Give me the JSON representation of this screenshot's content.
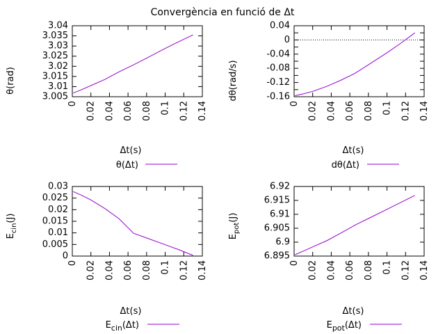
{
  "title": "Convergència en funció de Δt",
  "series_color": "#9400d3",
  "chart_data": [
    {
      "type": "line",
      "title": "",
      "xlabel": "Δt(s)",
      "ylabel": "θ(rad)",
      "legend": "θ(Δt)",
      "xlim": [
        0,
        0.14
      ],
      "ylim": [
        3.005,
        3.04
      ],
      "xticks": [
        0,
        0.02,
        0.04,
        0.06,
        0.08,
        0.1,
        0.12,
        0.14
      ],
      "xtick_labels": [
        "0",
        "0.02",
        "0.04",
        "0.06",
        "0.08",
        "0.1",
        "0.12",
        "0.14"
      ],
      "yticks": [
        3.005,
        3.01,
        3.015,
        3.02,
        3.025,
        3.03,
        3.035,
        3.04
      ],
      "ytick_labels": [
        "3.005",
        "3.01",
        "3.015",
        "3.02",
        "3.025",
        "3.03",
        "3.035",
        "3.04"
      ],
      "zero_line": false,
      "series": [
        {
          "name": "θ(Δt)",
          "x": [
            0.001,
            0.01,
            0.02,
            0.035,
            0.05,
            0.065,
            0.08,
            0.1,
            0.115,
            0.13
          ],
          "y": [
            3.0068,
            3.0085,
            3.0105,
            3.0135,
            3.0172,
            3.0205,
            3.024,
            3.0288,
            3.0322,
            3.0355
          ]
        }
      ]
    },
    {
      "type": "line",
      "title": "",
      "xlabel": "Δt(s)",
      "ylabel": "dθ(rad/s)",
      "legend": "dθ(Δt)",
      "xlim": [
        0,
        0.14
      ],
      "ylim": [
        -0.16,
        0.04
      ],
      "xticks": [
        0,
        0.02,
        0.04,
        0.06,
        0.08,
        0.1,
        0.12,
        0.14
      ],
      "xtick_labels": [
        "0",
        "0.02",
        "0.04",
        "0.06",
        "0.08",
        "0.1",
        "0.12",
        "0.14"
      ],
      "yticks": [
        -0.16,
        -0.14,
        -0.12,
        -0.1,
        -0.08,
        -0.06,
        -0.04,
        -0.02,
        0,
        0.02,
        0.04
      ],
      "ytick_labels": [
        "-0.16",
        "",
        "-0.12",
        "",
        "-0.08",
        "",
        "-0.04",
        "",
        "0",
        "",
        "0.04"
      ],
      "zero_line": true,
      "series": [
        {
          "name": "dθ(Δt)",
          "x": [
            0.001,
            0.01,
            0.02,
            0.035,
            0.05,
            0.065,
            0.08,
            0.1,
            0.115,
            0.13
          ],
          "y": [
            -0.157,
            -0.152,
            -0.145,
            -0.131,
            -0.114,
            -0.095,
            -0.07,
            -0.036,
            -0.009,
            0.02
          ]
        }
      ]
    },
    {
      "type": "line",
      "title": "",
      "xlabel": "Δt(s)",
      "ylabel": "E",
      "ylabel_sub": "cin",
      "ylabel_suffix": "(J)",
      "legend": "E",
      "legend_sub": "cin",
      "legend_suffix": "(Δt)",
      "xlim": [
        0,
        0.14
      ],
      "ylim": [
        0,
        0.03
      ],
      "xticks": [
        0,
        0.02,
        0.04,
        0.06,
        0.08,
        0.1,
        0.12,
        0.14
      ],
      "xtick_labels": [
        "0",
        "0.02",
        "0.04",
        "0.06",
        "0.08",
        "0.1",
        "0.12",
        "0.14"
      ],
      "yticks": [
        0,
        0.005,
        0.01,
        0.015,
        0.02,
        0.025,
        0.03
      ],
      "ytick_labels": [
        "0",
        "0.005",
        "0.01",
        "0.015",
        "0.02",
        "0.025",
        "0.03"
      ],
      "zero_line": false,
      "series": [
        {
          "name": "Ecin(Δt)",
          "x": [
            0.001,
            0.01,
            0.02,
            0.035,
            0.05,
            0.066,
            0.08,
            0.1,
            0.115,
            0.13
          ],
          "y": [
            0.0278,
            0.0262,
            0.0242,
            0.0205,
            0.0162,
            0.0098,
            0.0078,
            0.0049,
            0.0027,
            0.0003
          ]
        }
      ]
    },
    {
      "type": "line",
      "title": "",
      "xlabel": "Δt(s)",
      "ylabel": "E",
      "ylabel_sub": "pot",
      "ylabel_suffix": "(J)",
      "legend": "E",
      "legend_sub": "pot",
      "legend_suffix": "(Δt)",
      "xlim": [
        0,
        0.14
      ],
      "ylim": [
        6.895,
        6.92
      ],
      "xticks": [
        0,
        0.02,
        0.04,
        0.06,
        0.08,
        0.1,
        0.12,
        0.14
      ],
      "xtick_labels": [
        "0",
        "0.02",
        "0.04",
        "0.06",
        "0.08",
        "0.1",
        "0.12",
        "0.14"
      ],
      "yticks": [
        6.895,
        6.9,
        6.905,
        6.91,
        6.915,
        6.92
      ],
      "ytick_labels": [
        "6.895",
        "6.9",
        "6.905",
        "6.91",
        "6.915",
        "6.92"
      ],
      "zero_line": false,
      "series": [
        {
          "name": "Epot(Δt)",
          "x": [
            0.001,
            0.01,
            0.02,
            0.035,
            0.05,
            0.066,
            0.08,
            0.1,
            0.115,
            0.13
          ],
          "y": [
            6.8955,
            6.8968,
            6.8983,
            6.9005,
            6.9032,
            6.9062,
            6.9085,
            6.9118,
            6.9143,
            6.9168
          ]
        }
      ]
    }
  ]
}
